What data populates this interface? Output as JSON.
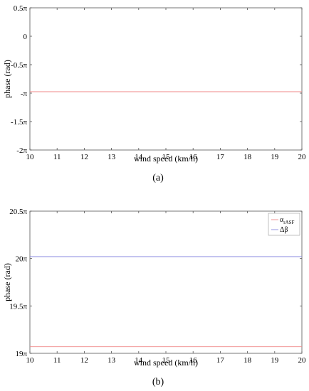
{
  "chart_data": [
    {
      "type": "line",
      "panel_label": "(a)",
      "xlabel": "wind speed (km/h)",
      "ylabel": "phase (rad)",
      "xlim": [
        10,
        20
      ],
      "ylim": [
        -2.0,
        0.5
      ],
      "x_ticks": [
        10,
        11,
        12,
        13,
        14,
        15,
        16,
        17,
        18,
        19,
        20
      ],
      "y_ticks": [
        {
          "value": 0.5,
          "label": "0.5π"
        },
        {
          "value": 0.0,
          "label": "0"
        },
        {
          "value": -0.5,
          "label": "-0.5π"
        },
        {
          "value": -1.0,
          "label": "-π"
        },
        {
          "value": -1.5,
          "label": "-1.5π"
        },
        {
          "value": -2.0,
          "label": "-2π"
        }
      ],
      "grid": false,
      "series": [
        {
          "color": "#f08a8a",
          "x": [
            10,
            20
          ],
          "y": [
            -0.975,
            -0.975
          ]
        }
      ]
    },
    {
      "type": "line",
      "panel_label": "(b)",
      "xlabel": "wind speed (km/h)",
      "ylabel": "phase (rad)",
      "xlim": [
        10,
        20
      ],
      "ylim": [
        19.0,
        20.5
      ],
      "x_ticks": [
        10,
        11,
        12,
        13,
        14,
        15,
        16,
        17,
        18,
        19,
        20
      ],
      "y_ticks": [
        {
          "value": 20.5,
          "label": "20.5π"
        },
        {
          "value": 20.0,
          "label": "20π"
        },
        {
          "value": 19.5,
          "label": "19.5π"
        },
        {
          "value": 19.0,
          "label": "19π"
        }
      ],
      "grid": false,
      "legend": "top-right",
      "series": [
        {
          "name": "α_rASF",
          "legend_main": "α",
          "legend_sub": "rASF",
          "color": "#f08a8a",
          "x": [
            10,
            20
          ],
          "y": [
            19.07,
            19.07
          ]
        },
        {
          "name": "Δβ",
          "legend_main": "Δβ",
          "legend_sub": "",
          "color": "#8a8ae0",
          "x": [
            10,
            20
          ],
          "y": [
            20.02,
            20.02
          ]
        }
      ]
    }
  ]
}
